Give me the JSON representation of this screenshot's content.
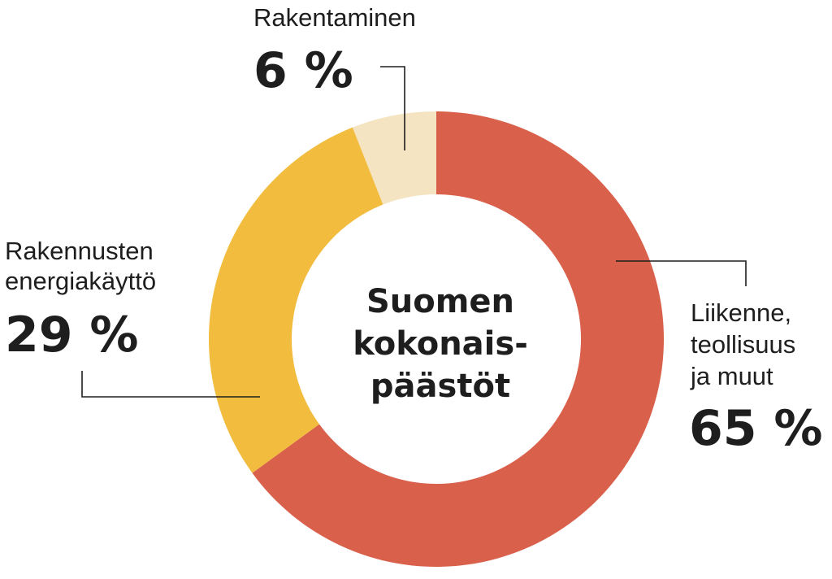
{
  "chart_data": {
    "type": "pie",
    "variant": "donut",
    "center_title_lines": [
      "Suomen",
      "kokonais-",
      "päästöt"
    ],
    "slices": [
      {
        "label_lines": [
          "Liikenne,",
          "teollisuus",
          "ja muut"
        ],
        "value": 65,
        "value_label": "65 %",
        "color": "#d9604a"
      },
      {
        "label_lines": [
          "Rakennusten",
          "energiakäyttö"
        ],
        "value": 29,
        "value_label": "29 %",
        "color": "#f2bd3f"
      },
      {
        "label_lines": [
          "Rakentaminen"
        ],
        "value": 6,
        "value_label": "6 %",
        "color": "#f4e4c1"
      }
    ]
  }
}
